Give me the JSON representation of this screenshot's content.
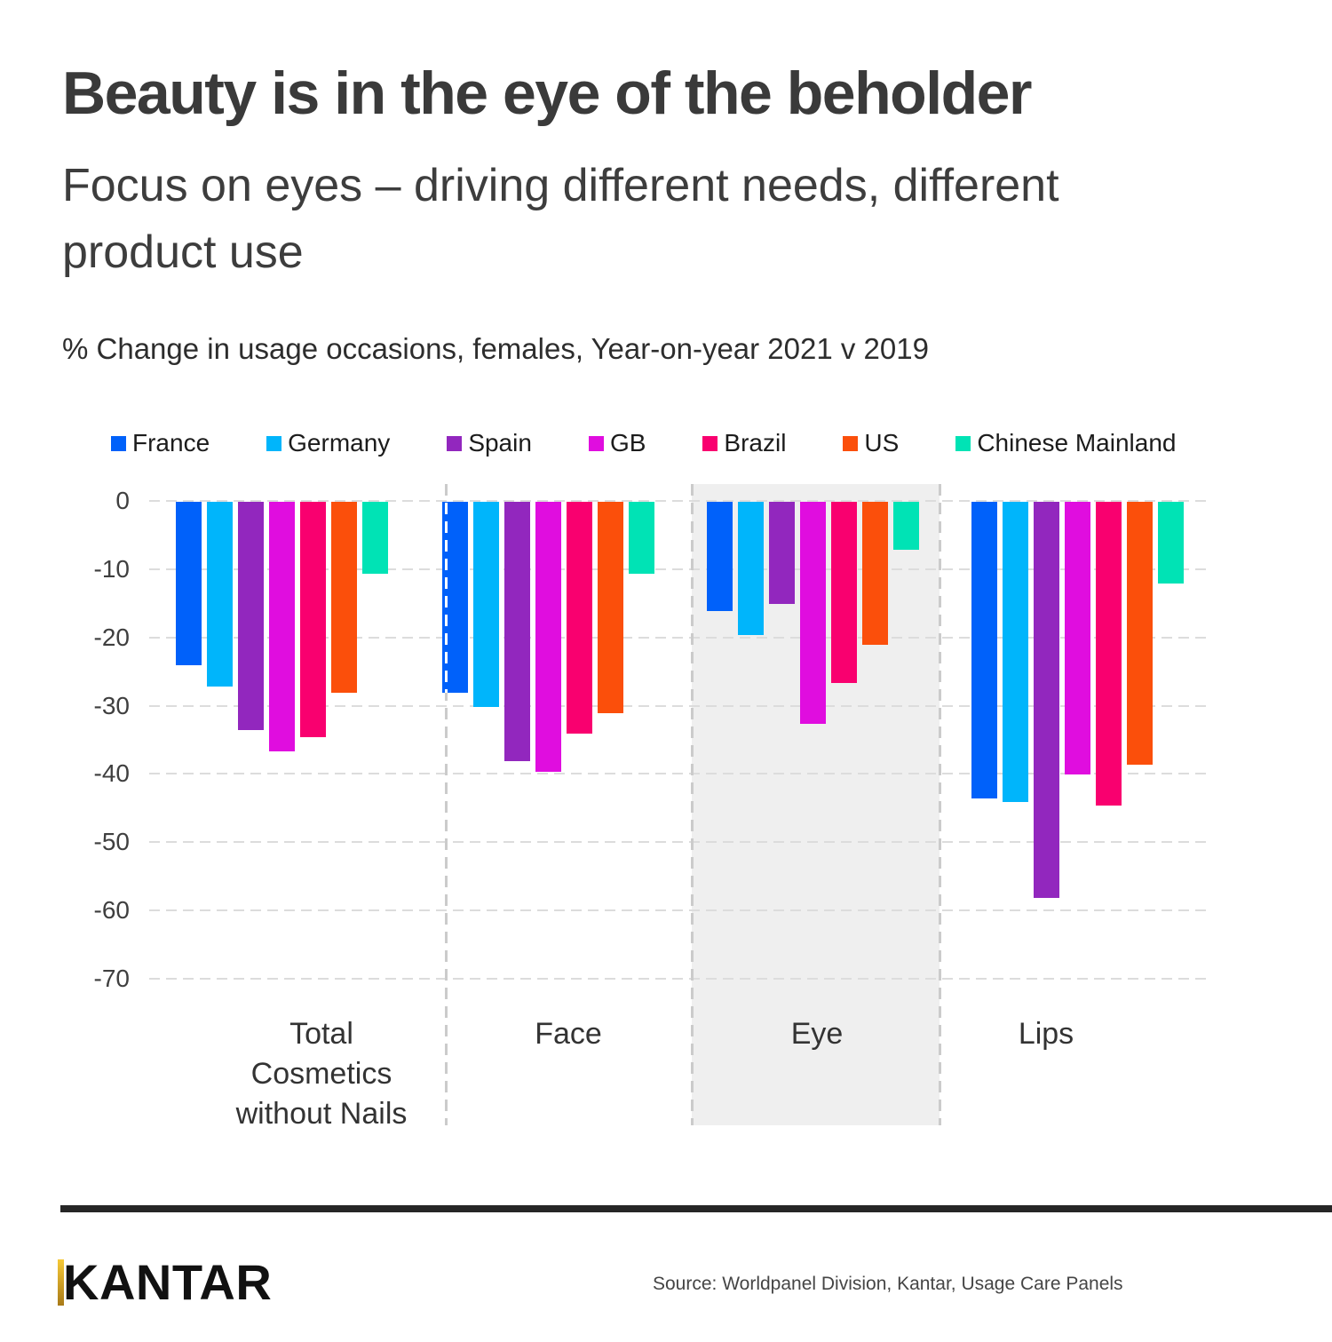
{
  "page": {
    "title": "Beauty is in the eye of the beholder",
    "subtitle": "Focus on eyes – driving different needs, different product use",
    "note": "% Change in usage occasions, females, Year-on-year 2021 v 2019"
  },
  "chart_data": {
    "type": "bar",
    "title": "Beauty is in the eye of the beholder",
    "subtitle": "Focus on eyes – driving different needs, different product use",
    "value_note": "% Change in usage occasions, females, Year-on-year 2021 v 2019",
    "categories": [
      "Total Cosmetics without Nails",
      "Face",
      "Eye",
      "Lips"
    ],
    "highlighted_category": "Eye",
    "legend_position": "top",
    "grid": "horizontal-dashed",
    "ylim": [
      -70,
      0
    ],
    "yticks": [
      0,
      -10,
      -20,
      -30,
      -40,
      -50,
      -60,
      -70
    ],
    "series": [
      {
        "name": "France",
        "color": "#0061fa",
        "values": [
          -24,
          -28,
          -16,
          -43.5
        ]
      },
      {
        "name": "Germany",
        "color": "#00b5fb",
        "values": [
          -27,
          -30,
          -19.5,
          -44
        ]
      },
      {
        "name": "Spain",
        "color": "#9227be",
        "values": [
          -33.5,
          -38,
          -15,
          -58
        ]
      },
      {
        "name": "GB",
        "color": "#e00ddf",
        "values": [
          -36.5,
          -39.5,
          -32.5,
          -40
        ]
      },
      {
        "name": "Brazil",
        "color": "#f9006f",
        "values": [
          -34.5,
          -34,
          -26.5,
          -44.5
        ]
      },
      {
        "name": "US",
        "color": "#fb4f0b",
        "values": [
          -28,
          -31,
          -21,
          -38.5
        ]
      },
      {
        "name": "Chinese Mainland",
        "color": "#00e3b5",
        "values": [
          -10.5,
          -10.5,
          -7,
          -12
        ]
      }
    ]
  },
  "footer": {
    "logo": "KANTAR",
    "logo_accent_color": "#e8b224",
    "source": "Source: Worldpanel Division, Kantar, Usage Care Panels"
  }
}
